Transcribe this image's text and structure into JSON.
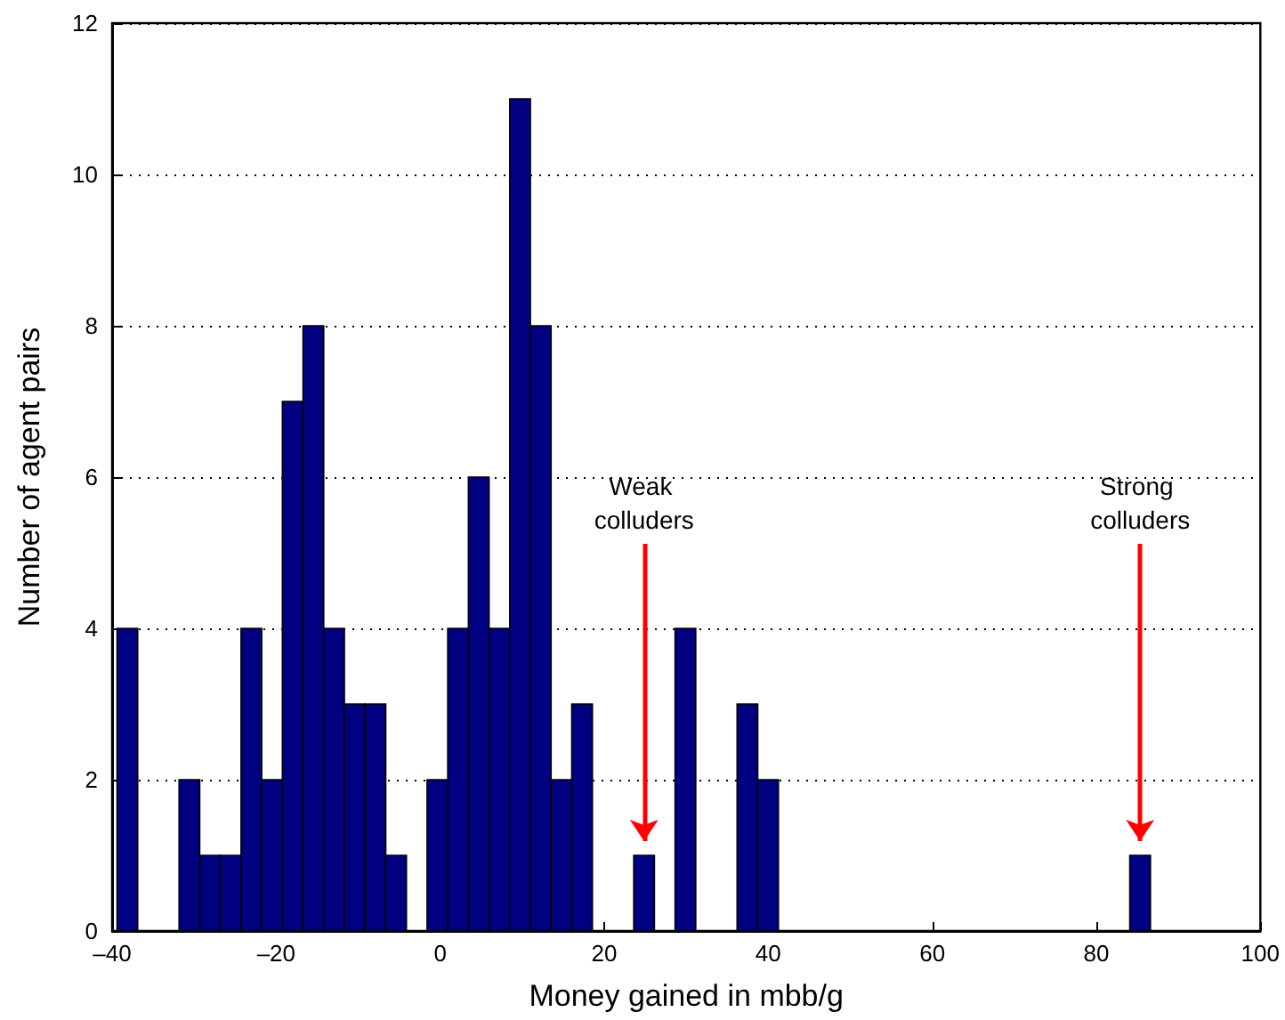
{
  "chart_data": {
    "type": "histogram",
    "xlabel": "Money gained in mbb/g",
    "ylabel": "Number of agent pairs",
    "bins": [
      -39.4,
      -36.88,
      -34.36,
      -31.84,
      -29.32,
      -26.8,
      -24.28,
      -21.76,
      -19.24,
      -16.72,
      -14.2,
      -11.68,
      -9.16,
      -6.64,
      -4.12,
      -1.6,
      0.92,
      3.44,
      5.96,
      8.48,
      11,
      13.52,
      16.04,
      18.56,
      21.08,
      23.6,
      26.12,
      28.64,
      31.16,
      33.68,
      36.2,
      38.72,
      41.24,
      43.76,
      46.28,
      48.8,
      51.32,
      53.84,
      56.36,
      58.88,
      61.4,
      63.92,
      66.44,
      68.96,
      71.48,
      74,
      76.52,
      79.04,
      81.56,
      84.08,
      86.6
    ],
    "values": [
      4,
      0,
      0,
      2,
      1,
      1,
      4,
      2,
      7,
      8,
      4,
      3,
      3,
      1,
      0,
      2,
      4,
      6,
      4,
      11,
      8,
      2,
      3,
      0,
      0,
      1,
      0,
      4,
      0,
      0,
      3,
      2,
      0,
      0,
      0,
      0,
      0,
      0,
      0,
      0,
      0,
      0,
      0,
      0,
      0,
      0,
      0,
      0,
      0,
      1
    ],
    "color": "#000080",
    "xlim": [
      -40,
      100
    ],
    "xticks": [
      {
        "value": -40,
        "label": "–40"
      },
      {
        "value": -20,
        "label": "–20"
      },
      0,
      20,
      40,
      60,
      80,
      100
    ],
    "ylim": [
      0,
      12
    ],
    "yticks": [
      0,
      2,
      4,
      6,
      8,
      10,
      12
    ],
    "grid": "y",
    "annotations": [
      {
        "text": "Weak colluders",
        "x": 24.86,
        "y": 1
      },
      {
        "text": "Strong colluders",
        "x": 85.34,
        "y": 1
      }
    ]
  }
}
